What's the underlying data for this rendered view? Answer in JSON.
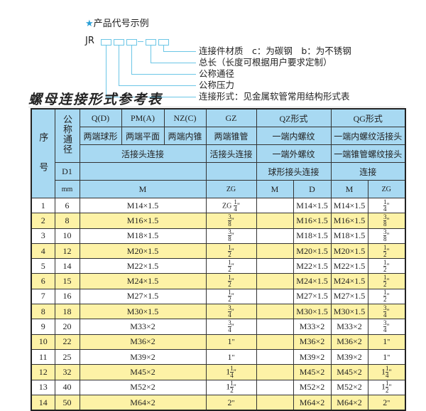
{
  "example": {
    "title": "产品代号示例",
    "star_icon": "★",
    "code": "JR",
    "labels": [
      "连接件材质　c：为碳钢　b：为不锈钢",
      "总长（长度可根据用户要求定制）",
      "公称通径",
      "公称压力",
      "连接形式：见金属软管常用结构形式表"
    ]
  },
  "table_title": "螺母连接形式参考表",
  "header": {
    "seq": "序　　号",
    "dn": "公称通径",
    "d1": "D1",
    "mm": "mm",
    "q": "Q(D)",
    "pm": "PM(A)",
    "nz": "NZ(C)",
    "gz": "GZ",
    "qz": "QZ形式",
    "qg": "QG形式",
    "q2": "两端球形",
    "pm2": "两端平面",
    "nz2": "两端内锥",
    "gz2": "两端锥管",
    "qz2": "一端内螺纹",
    "qg2": "一端内螺纹活接头",
    "huo": "活接头连接",
    "gz3": "活接头连接",
    "qz3": "一端外螺纹",
    "qg3": "一端锥管螺纹接头",
    "qz4": "球形接头连接",
    "qg4": "连接",
    "m": "M",
    "zg": "ZG",
    "qzm": "M",
    "qzd": "D",
    "qgm": "M",
    "qgzg": "ZG"
  },
  "rows": [
    {
      "no": "1",
      "dn": "6",
      "m": "M14×1.5",
      "zg": {
        "pre": "ZG",
        "w": "",
        "n": "1",
        "d": "4",
        "u": "\""
      },
      "qzm": "",
      "qzd": "M14×1.5",
      "qgm": "M14×1.5",
      "qgzg": {
        "pre": "",
        "w": "",
        "n": "1",
        "d": "4",
        "u": "\""
      }
    },
    {
      "no": "2",
      "dn": "8",
      "m": "M16×1.5",
      "zg": {
        "pre": "",
        "w": "",
        "n": "3",
        "d": "8",
        "u": "\""
      },
      "qzm": "",
      "qzd": "M16×1.5",
      "qgm": "M16×1.5",
      "qgzg": {
        "pre": "",
        "w": "",
        "n": "3",
        "d": "8",
        "u": "\""
      }
    },
    {
      "no": "3",
      "dn": "10",
      "m": "M18×1.5",
      "zg": {
        "pre": "",
        "w": "",
        "n": "3",
        "d": "8",
        "u": "\""
      },
      "qzm": "",
      "qzd": "M18×1.5",
      "qgm": "M18×1.5",
      "qgzg": {
        "pre": "",
        "w": "",
        "n": "3",
        "d": "8",
        "u": "\""
      }
    },
    {
      "no": "4",
      "dn": "12",
      "m": "M20×1.5",
      "zg": {
        "pre": "",
        "w": "",
        "n": "1",
        "d": "2",
        "u": "\""
      },
      "qzm": "",
      "qzd": "M20×1.5",
      "qgm": "M20×1.5",
      "qgzg": {
        "pre": "",
        "w": "",
        "n": "1",
        "d": "2",
        "u": "\""
      }
    },
    {
      "no": "5",
      "dn": "14",
      "m": "M22×1.5",
      "zg": {
        "pre": "",
        "w": "",
        "n": "1",
        "d": "2",
        "u": "\""
      },
      "qzm": "",
      "qzd": "M22×1.5",
      "qgm": "M22×1.5",
      "qgzg": {
        "pre": "",
        "w": "",
        "n": "1",
        "d": "2",
        "u": "\""
      }
    },
    {
      "no": "6",
      "dn": "15",
      "m": "M24×1.5",
      "zg": {
        "pre": "",
        "w": "",
        "n": "1",
        "d": "2",
        "u": "\""
      },
      "qzm": "",
      "qzd": "M24×1.5",
      "qgm": "M24×1.5",
      "qgzg": {
        "pre": "",
        "w": "",
        "n": "1",
        "d": "2",
        "u": "\""
      }
    },
    {
      "no": "7",
      "dn": "16",
      "m": "M27×1.5",
      "zg": {
        "pre": "",
        "w": "",
        "n": "1",
        "d": "2",
        "u": "\""
      },
      "qzm": "",
      "qzd": "M27×1.5",
      "qgm": "M27×1.5",
      "qgzg": {
        "pre": "",
        "w": "",
        "n": "1",
        "d": "2",
        "u": "\""
      }
    },
    {
      "no": "8",
      "dn": "18",
      "m": "M30×1.5",
      "zg": {
        "pre": "",
        "w": "",
        "n": "3",
        "d": "4",
        "u": "\""
      },
      "qzm": "",
      "qzd": "M30×1.5",
      "qgm": "M30×1.5",
      "qgzg": {
        "pre": "",
        "w": "",
        "n": "3",
        "d": "4",
        "u": "\""
      }
    },
    {
      "no": "9",
      "dn": "20",
      "m": "M33×2",
      "zg": {
        "pre": "",
        "w": "",
        "n": "3",
        "d": "4",
        "u": "\""
      },
      "qzm": "",
      "qzd": "M33×2",
      "qgm": "M33×2",
      "qgzg": {
        "pre": "",
        "w": "",
        "n": "3",
        "d": "4",
        "u": "\""
      }
    },
    {
      "no": "10",
      "dn": "22",
      "m": "M36×2",
      "zg": {
        "pre": "",
        "w": "1",
        "n": "",
        "d": "",
        "u": "\""
      },
      "qzm": "",
      "qzd": "M36×2",
      "qgm": "M36×2",
      "qgzg": {
        "pre": "",
        "w": "1",
        "n": "",
        "d": "",
        "u": "\""
      }
    },
    {
      "no": "11",
      "dn": "25",
      "m": "M39×2",
      "zg": {
        "pre": "",
        "w": "1",
        "n": "",
        "d": "",
        "u": "\""
      },
      "qzm": "",
      "qzd": "M39×2",
      "qgm": "M39×2",
      "qgzg": {
        "pre": "",
        "w": "1",
        "n": "",
        "d": "",
        "u": "\""
      }
    },
    {
      "no": "12",
      "dn": "32",
      "m": "M45×2",
      "zg": {
        "pre": "",
        "w": "1",
        "n": "1",
        "d": "4",
        "u": "\""
      },
      "qzm": "",
      "qzd": "M45×2",
      "qgm": "M45×2",
      "qgzg": {
        "pre": "",
        "w": "1",
        "n": "1",
        "d": "4",
        "u": "\""
      }
    },
    {
      "no": "13",
      "dn": "40",
      "m": "M52×2",
      "zg": {
        "pre": "",
        "w": "1",
        "n": "1",
        "d": "2",
        "u": "\""
      },
      "qzm": "",
      "qzd": "M52×2",
      "qgm": "M52×2",
      "qgzg": {
        "pre": "",
        "w": "1",
        "n": "1",
        "d": "2",
        "u": "\""
      }
    },
    {
      "no": "14",
      "dn": "50",
      "m": "M64×2",
      "zg": {
        "pre": "",
        "w": "2",
        "n": "",
        "d": "",
        "u": "\""
      },
      "qzm": "",
      "qzd": "M64×2",
      "qgm": "M64×2",
      "qgzg": {
        "pre": "",
        "w": "2",
        "n": "",
        "d": "",
        "u": "\""
      }
    }
  ],
  "colors": {
    "header": "#a8d9f2",
    "stripe": "#fdf2a6",
    "lines": "#6cc6e6"
  }
}
